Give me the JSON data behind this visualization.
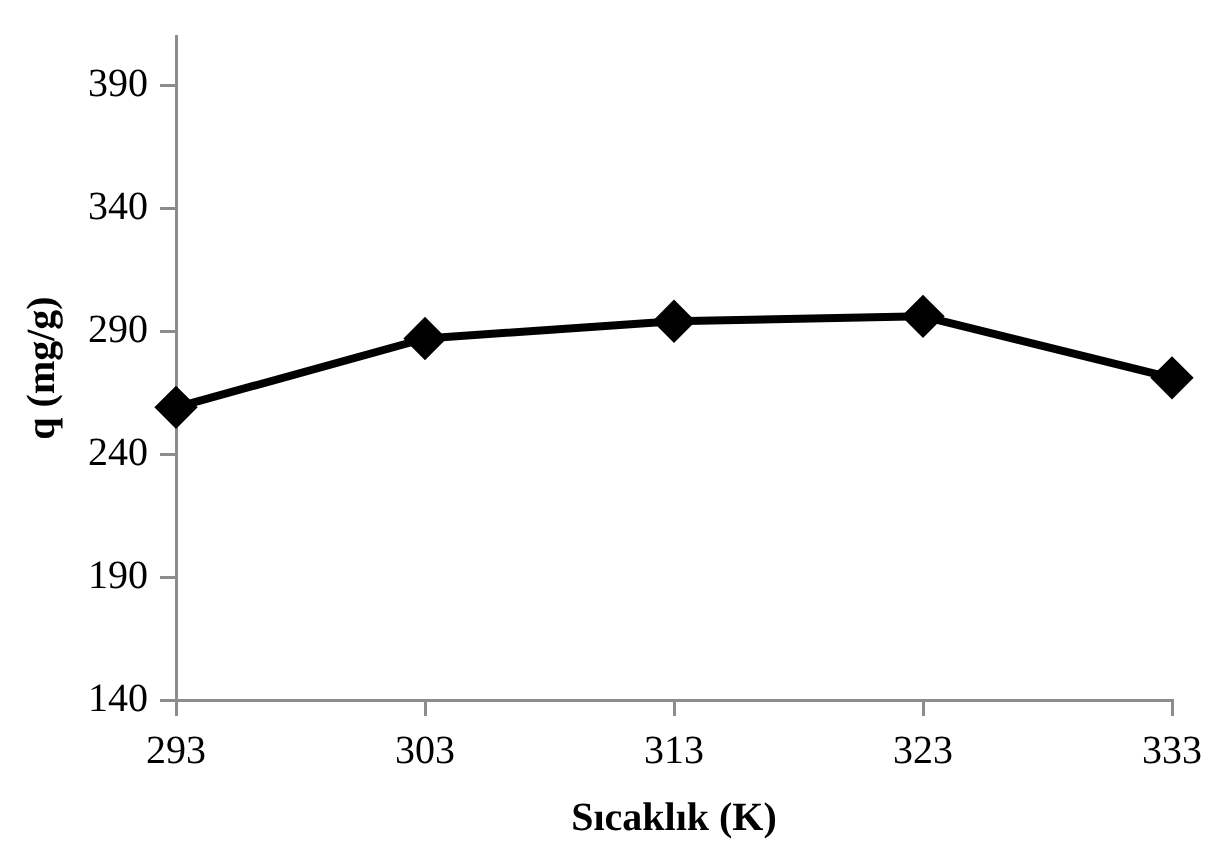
{
  "chart_data": {
    "type": "line",
    "xlabel": "Sıcaklık (K)",
    "ylabel": "q (mg/g)",
    "x": [
      293,
      303,
      313,
      323,
      333
    ],
    "series": [
      {
        "color": "#000000",
        "values": [
          259,
          287,
          294,
          296,
          271
        ]
      }
    ],
    "xlim": [
      293,
      333
    ],
    "xticks": [
      293,
      303,
      313,
      323,
      333
    ],
    "ylim": [
      140,
      410
    ],
    "yticks": [
      140,
      190,
      240,
      290,
      340,
      390
    ],
    "grid": false,
    "legend": false,
    "marker": "diamond",
    "line_style": "solid"
  }
}
